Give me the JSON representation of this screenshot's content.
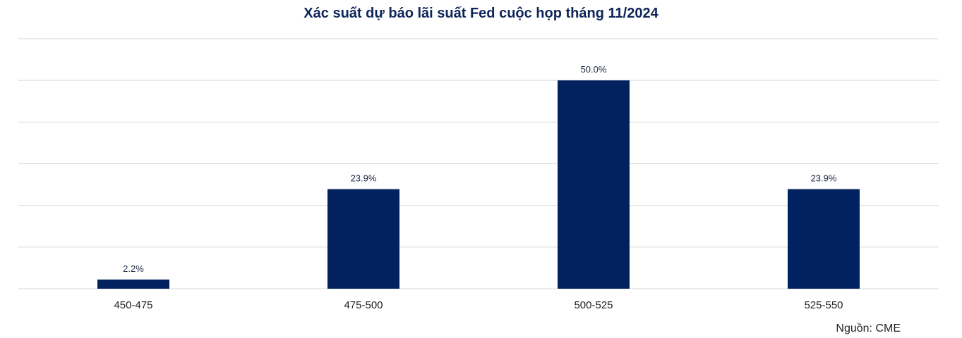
{
  "chart_data": {
    "type": "bar",
    "title": "Xác suất dự báo lãi suất Fed cuộc họp tháng 11/2024",
    "categories": [
      "450-475",
      "475-500",
      "500-525",
      "525-550"
    ],
    "values": [
      2.2,
      23.9,
      50.0,
      23.9
    ],
    "data_labels": [
      "2.2%",
      "23.9%",
      "50.0%",
      "23.9%"
    ],
    "ylim": [
      0,
      60
    ],
    "grid": true,
    "xlabel": "",
    "ylabel": "",
    "bar_color": "#02215f",
    "grid_color": "#d9d9d9"
  },
  "source": "Nguồn: CME"
}
